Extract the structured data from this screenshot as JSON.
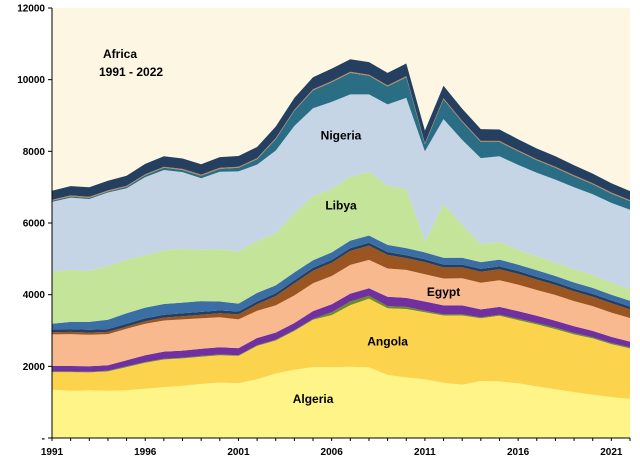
{
  "chart_data": {
    "type": "area",
    "stacked": true,
    "title_lines": [
      "Africa",
      "1991 - 2022"
    ],
    "xlabel": "",
    "ylabel": "",
    "x": [
      1991,
      1992,
      1993,
      1994,
      1995,
      1996,
      1997,
      1998,
      1999,
      2000,
      2001,
      2002,
      2003,
      2004,
      2005,
      2006,
      2007,
      2008,
      2009,
      2010,
      2011,
      2012,
      2013,
      2014,
      2015,
      2016,
      2017,
      2018,
      2019,
      2020,
      2021,
      2022
    ],
    "xticks": [
      1991,
      1996,
      2001,
      2006,
      2011,
      2016,
      2021
    ],
    "yticks": [
      0,
      2000,
      4000,
      6000,
      8000,
      10000,
      12000
    ],
    "ytick_labels": [
      "-",
      "2000",
      "4000",
      "6000",
      "8000",
      "10000",
      "12000"
    ],
    "xlim": [
      1991,
      2022
    ],
    "ylim": [
      0,
      12000
    ],
    "grid": false,
    "legend": "none",
    "background_color": "#fdf6e3",
    "series": [
      {
        "name": "Algeria",
        "label": "Algeria",
        "color": "#fff488",
        "values": [
          1350,
          1320,
          1330,
          1320,
          1330,
          1380,
          1420,
          1460,
          1510,
          1550,
          1530,
          1640,
          1800,
          1910,
          1980,
          1980,
          1990,
          1970,
          1760,
          1690,
          1640,
          1540,
          1490,
          1590,
          1580,
          1530,
          1440,
          1360,
          1280,
          1210,
          1140,
          1090
        ]
      },
      {
        "name": "Angola",
        "label": "Angola",
        "color": "#fcd34d",
        "values": [
          490,
          520,
          500,
          540,
          650,
          720,
          770,
          760,
          760,
          760,
          760,
          930,
          920,
          1080,
          1320,
          1450,
          1720,
          1920,
          1860,
          1910,
          1870,
          1880,
          1930,
          1750,
          1830,
          1760,
          1730,
          1680,
          1610,
          1570,
          1480,
          1410
        ]
      },
      {
        "name": "",
        "color": "#6b8e23",
        "values": [
          20,
          20,
          20,
          20,
          20,
          20,
          20,
          20,
          20,
          20,
          20,
          20,
          20,
          20,
          20,
          80,
          100,
          80,
          60,
          60,
          40,
          30,
          30,
          30,
          30,
          40,
          40,
          40,
          40,
          30,
          30,
          30
        ]
      },
      {
        "name": "",
        "color": "#7030a0",
        "values": [
          150,
          150,
          150,
          150,
          170,
          190,
          200,
          200,
          200,
          200,
          200,
          200,
          200,
          200,
          220,
          220,
          220,
          210,
          260,
          250,
          260,
          250,
          250,
          220,
          220,
          210,
          200,
          190,
          190,
          180,
          170,
          160
        ]
      },
      {
        "name": "Egypt",
        "label": "Egypt",
        "color": "#f9b98e",
        "values": [
          880,
          890,
          880,
          870,
          880,
          880,
          870,
          870,
          850,
          840,
          800,
          760,
          760,
          770,
          780,
          790,
          800,
          790,
          790,
          780,
          760,
          750,
          760,
          740,
          740,
          740,
          720,
          720,
          700,
          690,
          680,
          660
        ]
      },
      {
        "name": "",
        "color": "#9b5521",
        "values": [
          60,
          60,
          60,
          60,
          60,
          70,
          80,
          90,
          100,
          110,
          140,
          180,
          260,
          340,
          350,
          370,
          390,
          400,
          380,
          330,
          340,
          310,
          300,
          310,
          310,
          300,
          290,
          280,
          270,
          260,
          260,
          240
        ]
      },
      {
        "name": "",
        "color": "#243f60",
        "values": [
          80,
          80,
          80,
          80,
          80,
          80,
          80,
          80,
          80,
          80,
          80,
          80,
          80,
          80,
          80,
          80,
          80,
          80,
          80,
          80,
          80,
          80,
          80,
          80,
          80,
          80,
          80,
          80,
          80,
          80,
          80,
          80
        ]
      },
      {
        "name": "",
        "color": "#3a6ea5",
        "values": [
          160,
          200,
          220,
          260,
          290,
          300,
          300,
          300,
          300,
          250,
          220,
          240,
          220,
          220,
          210,
          210,
          210,
          200,
          200,
          200,
          190,
          190,
          190,
          190,
          190,
          180,
          180,
          170,
          170,
          170,
          160,
          160
        ]
      },
      {
        "name": "Libya",
        "label": "Libya",
        "color": "#c4e49a",
        "values": [
          1450,
          1450,
          1430,
          1500,
          1490,
          1460,
          1500,
          1500,
          1430,
          1460,
          1460,
          1450,
          1450,
          1650,
          1790,
          1770,
          1780,
          1790,
          1640,
          1650,
          300,
          1490,
          920,
          500,
          490,
          410,
          390,
          370,
          370,
          350,
          330,
          320
        ]
      },
      {
        "name": "Nigeria",
        "label": "Nigeria",
        "color": "#c5d5e6",
        "values": [
          1950,
          2020,
          2000,
          2050,
          2000,
          2180,
          2240,
          2140,
          2000,
          2160,
          2230,
          2130,
          2310,
          2440,
          2450,
          2430,
          2300,
          2150,
          2280,
          2540,
          2520,
          2380,
          2370,
          2400,
          2390,
          2370,
          2330,
          2320,
          2290,
          2260,
          2230,
          2220
        ]
      },
      {
        "name": "",
        "color": "#2a6e85",
        "values": [
          30,
          30,
          30,
          30,
          40,
          50,
          60,
          60,
          70,
          80,
          100,
          150,
          320,
          420,
          500,
          550,
          600,
          520,
          500,
          580,
          200,
          550,
          500,
          450,
          400,
          380,
          350,
          330,
          300,
          280,
          260,
          240
        ]
      },
      {
        "name": "",
        "color": "#c0855a",
        "values": [
          30,
          30,
          30,
          30,
          30,
          30,
          30,
          30,
          30,
          30,
          30,
          30,
          30,
          30,
          30,
          30,
          30,
          30,
          30,
          30,
          30,
          30,
          30,
          30,
          30,
          30,
          30,
          30,
          30,
          30,
          30,
          30
        ]
      },
      {
        "name": "",
        "color": "#243f60",
        "values": [
          250,
          260,
          270,
          270,
          280,
          290,
          290,
          290,
          290,
          300,
          300,
          310,
          320,
          330,
          340,
          350,
          350,
          350,
          350,
          350,
          350,
          350,
          340,
          330,
          320,
          310,
          300,
          290,
          280,
          270,
          260,
          250
        ]
      }
    ]
  }
}
